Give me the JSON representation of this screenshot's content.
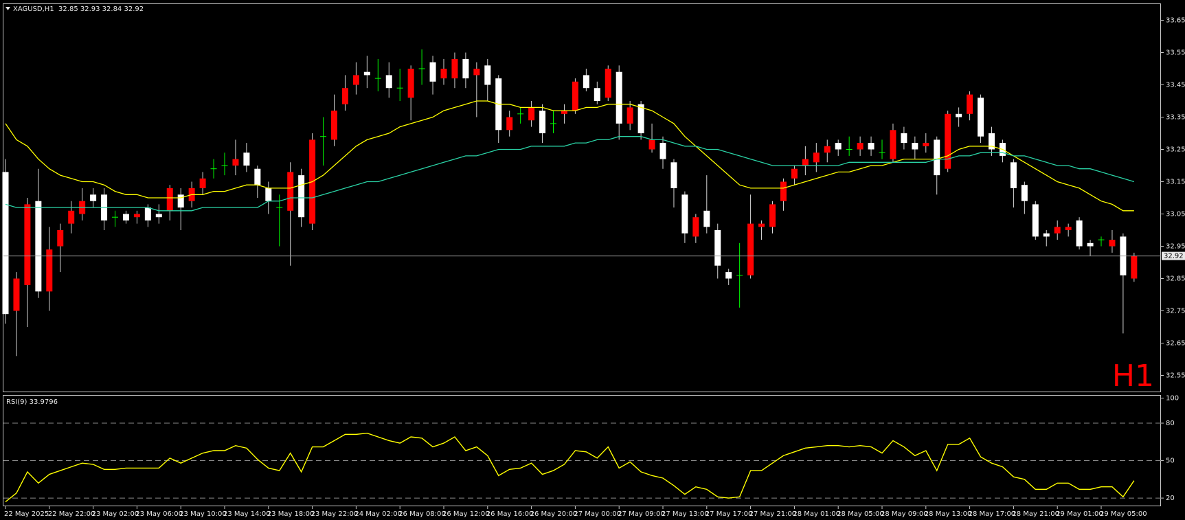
{
  "chart_data": [
    {
      "type": "candlestick",
      "title": "XAGUSD,H1  32.85 32.93 32.84 32.92",
      "annotation": "H1",
      "open": [
        33.18,
        32.75,
        32.83,
        33.09,
        32.81,
        32.95,
        33.02,
        33.05,
        33.11,
        33.11,
        33.04,
        33.05,
        33.04,
        33.07,
        33.05,
        33.06,
        33.11,
        33.09,
        33.13,
        33.19,
        33.2,
        33.2,
        33.24,
        33.19,
        33.13,
        33.07,
        33.06,
        33.17,
        33.02,
        33.29,
        33.28,
        33.39,
        33.45,
        33.49,
        33.47,
        33.48,
        33.44,
        33.41,
        33.5,
        33.52,
        33.47,
        33.47,
        33.53,
        33.48,
        33.51,
        33.47,
        33.31,
        33.36,
        33.34,
        33.37,
        33.33,
        33.36,
        33.37,
        33.48,
        33.44,
        33.41,
        33.49,
        33.33,
        33.39,
        33.25,
        33.27,
        33.21,
        33.11,
        32.98,
        33.06,
        33.0,
        32.87,
        32.86,
        32.86,
        33.01,
        33.01,
        33.09,
        33.16,
        33.2,
        33.21,
        33.24,
        33.27,
        33.25,
        33.25,
        33.27,
        33.24,
        33.22,
        33.3,
        33.27,
        33.26,
        33.28,
        33.19,
        33.36,
        33.36,
        33.41,
        33.3,
        33.27,
        33.21,
        33.14,
        33.08,
        32.99,
        32.99,
        33.0,
        33.03,
        32.96,
        32.97,
        32.95,
        32.98,
        32.85
      ],
      "high": [
        33.22,
        32.87,
        33.1,
        33.19,
        33.01,
        33.02,
        33.09,
        33.13,
        33.13,
        33.13,
        33.06,
        33.06,
        33.06,
        33.08,
        33.08,
        33.14,
        33.13,
        33.15,
        33.18,
        33.22,
        33.24,
        33.28,
        33.27,
        33.2,
        33.15,
        33.11,
        33.21,
        33.19,
        33.3,
        33.35,
        33.42,
        33.48,
        33.52,
        33.54,
        33.53,
        33.52,
        33.5,
        33.51,
        33.56,
        33.54,
        33.53,
        33.55,
        33.55,
        33.52,
        33.53,
        33.48,
        33.37,
        33.38,
        33.4,
        33.39,
        33.37,
        33.39,
        33.47,
        33.5,
        33.46,
        33.51,
        33.51,
        33.4,
        33.4,
        33.33,
        33.29,
        33.22,
        33.12,
        33.05,
        33.17,
        33.02,
        32.88,
        32.96,
        33.11,
        33.03,
        33.09,
        33.16,
        33.2,
        33.26,
        33.27,
        33.28,
        33.28,
        33.29,
        33.29,
        33.29,
        33.28,
        33.33,
        33.32,
        33.29,
        33.3,
        33.29,
        33.37,
        33.38,
        33.43,
        33.42,
        33.32,
        33.28,
        33.22,
        33.15,
        33.09,
        33.0,
        33.03,
        33.02,
        33.04,
        32.97,
        32.98,
        33.0,
        32.99,
        32.93
      ],
      "low": [
        32.71,
        32.61,
        32.7,
        32.79,
        32.75,
        32.87,
        32.99,
        33.03,
        33.07,
        33.0,
        33.01,
        33.02,
        33.02,
        33.01,
        33.02,
        33.03,
        33.0,
        33.07,
        33.11,
        33.16,
        33.17,
        33.17,
        33.18,
        33.1,
        33.05,
        32.95,
        32.89,
        33.01,
        33.0,
        33.2,
        33.26,
        33.37,
        33.42,
        33.44,
        33.43,
        33.41,
        33.4,
        33.34,
        33.45,
        33.42,
        33.45,
        33.44,
        33.44,
        33.35,
        33.4,
        33.27,
        33.29,
        33.33,
        33.32,
        33.27,
        33.3,
        33.33,
        33.36,
        33.43,
        33.39,
        33.4,
        33.28,
        33.31,
        33.28,
        33.24,
        33.19,
        33.07,
        32.96,
        32.96,
        32.99,
        32.85,
        32.83,
        32.76,
        32.85,
        32.97,
        32.99,
        33.06,
        33.14,
        33.17,
        33.18,
        33.21,
        33.23,
        33.23,
        33.23,
        33.23,
        33.22,
        33.21,
        33.25,
        33.22,
        33.24,
        33.11,
        33.18,
        33.32,
        33.34,
        33.27,
        33.23,
        33.21,
        33.07,
        33.05,
        32.97,
        32.95,
        32.97,
        32.98,
        32.94,
        32.92,
        32.95,
        32.93,
        32.68,
        32.84
      ],
      "close": [
        32.74,
        32.85,
        33.08,
        32.81,
        32.94,
        33.0,
        33.06,
        33.09,
        33.09,
        33.03,
        33.04,
        33.03,
        33.05,
        33.03,
        33.04,
        33.13,
        33.07,
        33.13,
        33.16,
        33.19,
        33.2,
        33.22,
        33.2,
        33.14,
        33.09,
        33.07,
        33.18,
        33.04,
        33.28,
        33.29,
        33.37,
        33.44,
        33.48,
        33.48,
        33.47,
        33.44,
        33.44,
        33.5,
        33.5,
        33.46,
        33.5,
        33.53,
        33.47,
        33.5,
        33.45,
        33.31,
        33.35,
        33.36,
        33.38,
        33.3,
        33.33,
        33.37,
        33.46,
        33.44,
        33.4,
        33.5,
        33.33,
        33.38,
        33.3,
        33.28,
        33.22,
        33.13,
        32.99,
        33.04,
        33.01,
        32.89,
        32.85,
        32.86,
        33.02,
        33.02,
        33.08,
        33.15,
        33.19,
        33.22,
        33.24,
        33.26,
        33.25,
        33.25,
        33.27,
        33.25,
        33.24,
        33.31,
        33.27,
        33.25,
        33.27,
        33.17,
        33.36,
        33.35,
        33.42,
        33.29,
        33.25,
        33.23,
        33.13,
        33.09,
        32.98,
        32.98,
        33.01,
        33.01,
        32.95,
        32.95,
        32.97,
        32.97,
        32.86,
        32.92
      ],
      "up_color": "#ff0000",
      "down_color": "#ffffff",
      "doji_color": "#00ff00",
      "wick_color": "#d8d8d8",
      "lines": [
        {
          "color": "#ffff00",
          "values": [
            33.33,
            33.28,
            33.26,
            33.22,
            33.19,
            33.17,
            33.16,
            33.15,
            33.15,
            33.14,
            33.12,
            33.11,
            33.11,
            33.1,
            33.1,
            33.1,
            33.1,
            33.11,
            33.11,
            33.12,
            33.12,
            33.13,
            33.14,
            33.14,
            33.13,
            33.13,
            33.13,
            33.14,
            33.15,
            33.17,
            33.2,
            33.23,
            33.26,
            33.28,
            33.29,
            33.3,
            33.32,
            33.33,
            33.34,
            33.35,
            33.37,
            33.38,
            33.39,
            33.4,
            33.4,
            33.39,
            33.39,
            33.38,
            33.38,
            33.38,
            33.37,
            33.37,
            33.37,
            33.38,
            33.38,
            33.39,
            33.39,
            33.39,
            33.38,
            33.37,
            33.35,
            33.33,
            33.29,
            33.26,
            33.23,
            33.2,
            33.17,
            33.14,
            33.13,
            33.13,
            33.13,
            33.13,
            33.14,
            33.15,
            33.16,
            33.17,
            33.18,
            33.18,
            33.19,
            33.2,
            33.2,
            33.21,
            33.22,
            33.22,
            33.22,
            33.22,
            33.23,
            33.25,
            33.26,
            33.26,
            33.26,
            33.25,
            33.23,
            33.21,
            33.19,
            33.17,
            33.15,
            33.14,
            33.13,
            33.11,
            33.09,
            33.08,
            33.06,
            33.06
          ]
        },
        {
          "color": "#2ad3a6",
          "values": [
            33.08,
            33.07,
            33.07,
            33.07,
            33.07,
            33.07,
            33.07,
            33.07,
            33.07,
            33.07,
            33.07,
            33.07,
            33.07,
            33.07,
            33.06,
            33.06,
            33.06,
            33.06,
            33.07,
            33.07,
            33.07,
            33.07,
            33.07,
            33.07,
            33.09,
            33.09,
            33.1,
            33.1,
            33.1,
            33.11,
            33.12,
            33.13,
            33.14,
            33.15,
            33.15,
            33.16,
            33.17,
            33.18,
            33.19,
            33.2,
            33.21,
            33.22,
            33.23,
            33.23,
            33.24,
            33.25,
            33.25,
            33.25,
            33.26,
            33.26,
            33.26,
            33.26,
            33.27,
            33.27,
            33.28,
            33.28,
            33.29,
            33.29,
            33.29,
            33.28,
            33.28,
            33.27,
            33.26,
            33.26,
            33.25,
            33.25,
            33.24,
            33.23,
            33.22,
            33.21,
            33.2,
            33.2,
            33.2,
            33.2,
            33.2,
            33.2,
            33.2,
            33.21,
            33.21,
            33.21,
            33.21,
            33.21,
            33.21,
            33.21,
            33.21,
            33.22,
            33.22,
            33.23,
            33.23,
            33.24,
            33.24,
            33.24,
            33.23,
            33.23,
            33.22,
            33.21,
            33.2,
            33.2,
            33.19,
            33.19,
            33.18,
            33.17,
            33.16,
            33.15
          ]
        }
      ],
      "current_price": 32.92,
      "ylim": [
        32.5,
        33.7
      ],
      "yticks": [
        33.65,
        33.55,
        33.45,
        33.35,
        33.25,
        33.15,
        33.05,
        32.95,
        32.85,
        32.75,
        32.65,
        32.55
      ]
    },
    {
      "type": "line",
      "title": "RSI(9) 33.9796",
      "color": "#ffff00",
      "values": [
        17,
        24,
        41,
        32,
        39,
        42,
        45,
        48,
        47,
        43,
        43,
        44,
        44,
        44,
        44,
        52,
        48,
        52,
        56,
        58,
        58,
        62,
        60,
        51,
        44,
        42,
        56,
        41,
        61,
        61,
        66,
        71,
        71,
        72,
        69,
        66,
        64,
        69,
        68,
        61,
        64,
        69,
        58,
        61,
        54,
        38,
        43,
        44,
        48,
        39,
        42,
        47,
        58,
        57,
        52,
        61,
        44,
        49,
        41,
        38,
        36,
        30,
        23,
        29,
        27,
        21,
        20,
        21,
        42,
        42,
        48,
        54,
        57,
        60,
        61,
        62,
        62,
        61,
        62,
        61,
        56,
        66,
        61,
        54,
        58,
        42,
        63,
        63,
        68,
        53,
        48,
        45,
        37,
        35,
        27,
        27,
        32,
        32,
        27,
        27,
        29,
        29,
        21,
        33.98
      ],
      "categories": [
        "22 May 2025",
        null,
        null,
        null,
        "22 May 22:00",
        null,
        null,
        null,
        "23 May 02:00",
        null,
        null,
        null,
        "23 May 06:00",
        null,
        null,
        null,
        "23 May 10:00",
        null,
        null,
        null,
        "23 May 14:00",
        null,
        null,
        null,
        "23 May 18:00",
        null,
        null,
        null,
        "23 May 22:00",
        null,
        null,
        null,
        "24 May 02:00",
        null,
        null,
        null,
        "26 May 08:00",
        null,
        null,
        null,
        "26 May 12:00",
        null,
        null,
        null,
        "26 May 16:00",
        null,
        null,
        null,
        "26 May 20:00",
        null,
        null,
        null,
        "27 May 00:00",
        null,
        null,
        null,
        "27 May 09:00",
        null,
        null,
        null,
        "27 May 13:00",
        null,
        null,
        null,
        "27 May 17:00",
        null,
        null,
        null,
        "27 May 21:00",
        null,
        null,
        null,
        "28 May 01:00",
        null,
        null,
        null,
        "28 May 05:00",
        null,
        null,
        null,
        "28 May 09:00",
        null,
        null,
        null,
        "28 May 13:00",
        null,
        null,
        null,
        "28 May 17:00",
        null,
        null,
        null,
        "28 May 21:00",
        null,
        null,
        null,
        "29 May 01:00",
        null,
        null,
        null,
        "29 May 05:00",
        null,
        null,
        null
      ],
      "levels": [
        80,
        50,
        20
      ],
      "ylim": [
        14,
        102
      ],
      "yticks": [
        100,
        80,
        50,
        20
      ]
    }
  ]
}
